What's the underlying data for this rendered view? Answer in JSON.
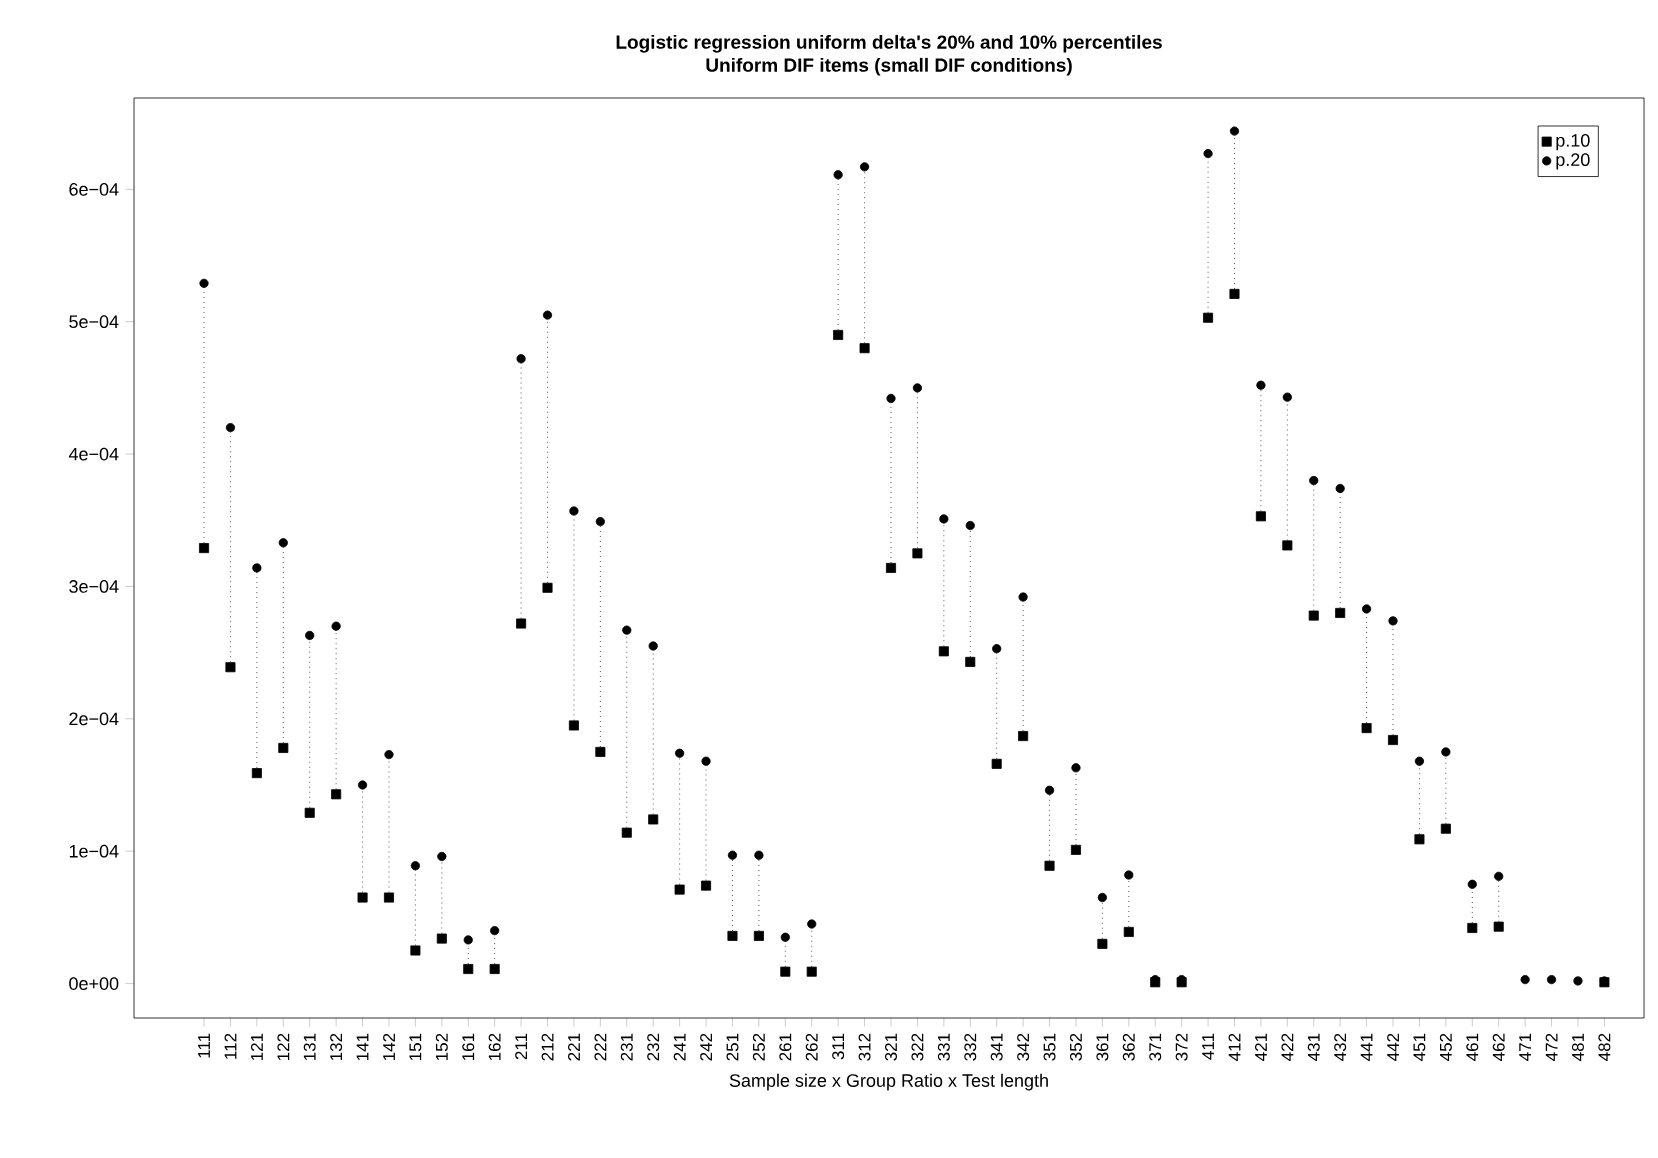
{
  "chart_data": {
    "type": "scatter",
    "title": "Logistic regression uniform delta's 20%  and  10%  percentiles",
    "subtitle": "Uniform DIF items (small DIF conditions)",
    "xlabel": "Sample size x Group Ratio x Test length",
    "categories": [
      "111",
      "112",
      "121",
      "122",
      "131",
      "132",
      "141",
      "142",
      "151",
      "152",
      "161",
      "162",
      "211",
      "212",
      "221",
      "222",
      "231",
      "232",
      "241",
      "242",
      "251",
      "252",
      "261",
      "262",
      "311",
      "312",
      "321",
      "322",
      "331",
      "332",
      "341",
      "342",
      "351",
      "352",
      "361",
      "362",
      "371",
      "372",
      "411",
      "412",
      "421",
      "422",
      "431",
      "432",
      "441",
      "442",
      "451",
      "452",
      "461",
      "462",
      "471",
      "472",
      "481",
      "482"
    ],
    "series": [
      {
        "name": "p.10",
        "color": "#000000",
        "marker": "square",
        "values": [
          0.000329,
          0.000239,
          0.000159,
          0.000178,
          0.000129,
          0.000143,
          6.5e-05,
          6.5e-05,
          2.5e-05,
          3.4e-05,
          1.1e-05,
          1.1e-05,
          0.000272,
          0.000299,
          0.000195,
          0.000175,
          0.000114,
          0.000124,
          7.1e-05,
          7.4e-05,
          3.6e-05,
          3.6e-05,
          9e-06,
          9e-06,
          0.00049,
          0.00048,
          0.000314,
          0.000325,
          0.000251,
          0.000243,
          0.000166,
          0.000187,
          8.9e-05,
          0.000101,
          3e-05,
          3.9e-05,
          1e-06,
          1e-06,
          0.000503,
          0.000521,
          0.000353,
          0.000331,
          0.000278,
          0.00028,
          0.000193,
          0.000184,
          0.000109,
          0.000117,
          4.2e-05,
          4.3e-05,
          null,
          null,
          null,
          1e-06
        ]
      },
      {
        "name": "p.20",
        "color": "#000000",
        "marker": "circle",
        "values": [
          0.000529,
          0.00042,
          0.000314,
          0.000333,
          0.000263,
          0.00027,
          0.00015,
          0.000173,
          8.9e-05,
          9.6e-05,
          3.3e-05,
          4e-05,
          0.000472,
          0.000505,
          0.000357,
          0.000349,
          0.000267,
          0.000255,
          0.000174,
          0.000168,
          9.7e-05,
          9.7e-05,
          3.5e-05,
          4.5e-05,
          0.000611,
          0.000617,
          0.000442,
          0.00045,
          0.000351,
          0.000346,
          0.000253,
          0.000292,
          0.000146,
          0.000163,
          6.5e-05,
          8.2e-05,
          3e-06,
          3e-06,
          0.000627,
          0.000644,
          0.000452,
          0.000443,
          0.00038,
          0.000374,
          0.000283,
          0.000274,
          0.000168,
          0.000175,
          7.5e-05,
          8.1e-05,
          3e-06,
          3e-06,
          2e-06,
          2e-06
        ]
      }
    ],
    "ylim": [
      -2.6e-05,
      0.000669
    ],
    "yticks": [
      {
        "value": 0,
        "label": "0e+00"
      },
      {
        "value": 0.0001,
        "label": "1e−04"
      },
      {
        "value": 0.0002,
        "label": "2e−04"
      },
      {
        "value": 0.0003,
        "label": "3e−04"
      },
      {
        "value": 0.0004,
        "label": "4e−04"
      },
      {
        "value": 0.0005,
        "label": "5e−04"
      },
      {
        "value": 0.0006,
        "label": "6e−04"
      }
    ],
    "grid": false,
    "legend": "top right"
  }
}
